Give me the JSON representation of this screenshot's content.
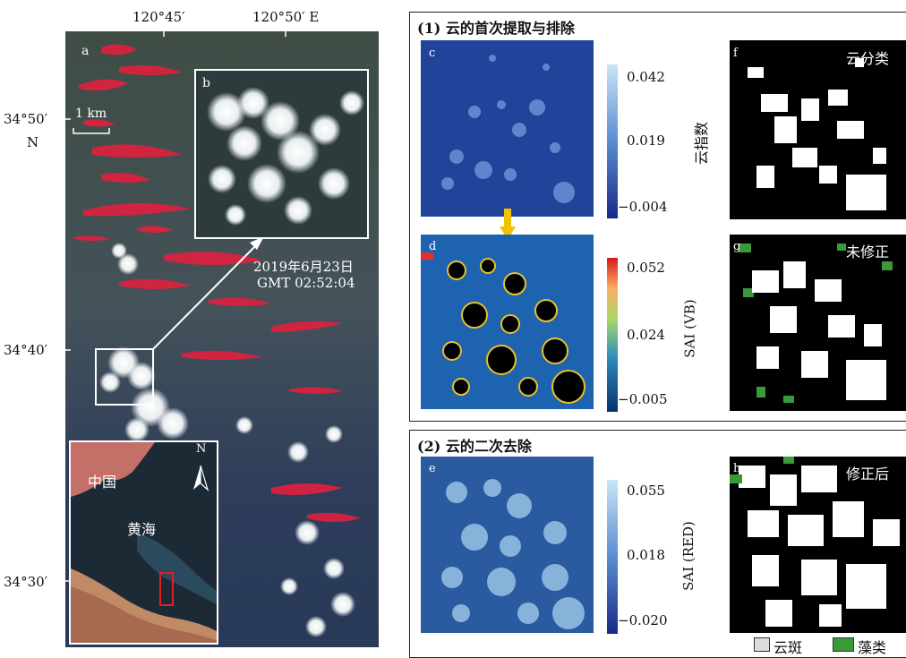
{
  "left": {
    "lon_labels": [
      "120°45′",
      "120°50′ E"
    ],
    "lat_labels": [
      "34°50′",
      "34°40′",
      "34°30′"
    ],
    "lat_unit": "N",
    "panel_a": "a",
    "panel_b": "b",
    "scale_bar": "1 km",
    "date": "2019年6月23日",
    "time": "GMT 02:52:04",
    "inset_north": "N",
    "inset_china": "中国",
    "inset_sea": "黄海"
  },
  "section1": {
    "title": "(1) 云的首次提取与排除",
    "panel_c": "c",
    "panel_d": "d",
    "panel_f": "f",
    "panel_g": "g",
    "f_label": "云分类",
    "g_label": "未修正",
    "cbar_c_ticks": [
      "0.042",
      "0.019",
      "−0.004"
    ],
    "cbar_c_label": "云指数",
    "cbar_d_ticks": [
      "0.052",
      "0.024",
      "−0.005"
    ],
    "cbar_d_label": "SAI (VB)"
  },
  "section2": {
    "title": "(2) 云的二次去除",
    "panel_e": "e",
    "panel_h": "h",
    "h_label": "修正后",
    "cbar_e_ticks": [
      "0.055",
      "0.018",
      "−0.020"
    ],
    "cbar_e_label": "SAI (RED)"
  },
  "legend": {
    "cloud": "云斑",
    "algae": "藻类",
    "cloud_color": "#dcdcdc",
    "algae_color": "#3a9a3a"
  }
}
